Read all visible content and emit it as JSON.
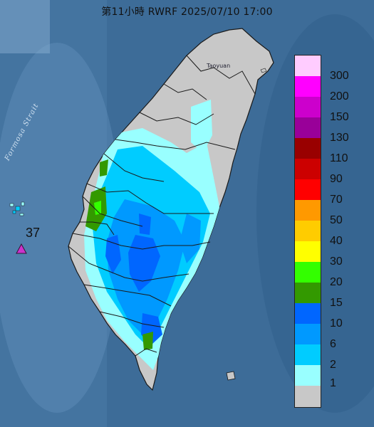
{
  "title": "第11小時 RWRF 2025/07/10 17:00",
  "legend": {
    "items": [
      {
        "label": "300",
        "color": "#ffccff"
      },
      {
        "label": "200",
        "color": "#ff00ff"
      },
      {
        "label": "150",
        "color": "#cc00cc"
      },
      {
        "label": "130",
        "color": "#990099"
      },
      {
        "label": "110",
        "color": "#990000"
      },
      {
        "label": "90",
        "color": "#cc0000"
      },
      {
        "label": "70",
        "color": "#ff0000"
      },
      {
        "label": "50",
        "color": "#ff9900"
      },
      {
        "label": "40",
        "color": "#ffcc00"
      },
      {
        "label": "30",
        "color": "#ffff00"
      },
      {
        "label": "20",
        "color": "#33ff00"
      },
      {
        "label": "15",
        "color": "#339900"
      },
      {
        "label": "10",
        "color": "#0066ff"
      },
      {
        "label": "6",
        "color": "#0099ff"
      },
      {
        "label": "2",
        "color": "#00ccff"
      },
      {
        "label": "1",
        "color": "#99ffff"
      },
      {
        "label": "",
        "color": "#c8c8c8"
      }
    ]
  },
  "map_labels": {
    "strait": "Formosa Strait",
    "city_north": "Taoyuan"
  },
  "station": {
    "value": "37",
    "marker_color": "#cc33cc"
  },
  "colors": {
    "sea": "#3d6c98",
    "land_no_rain": "#c8c8c8",
    "border": "#1a1a1a"
  }
}
